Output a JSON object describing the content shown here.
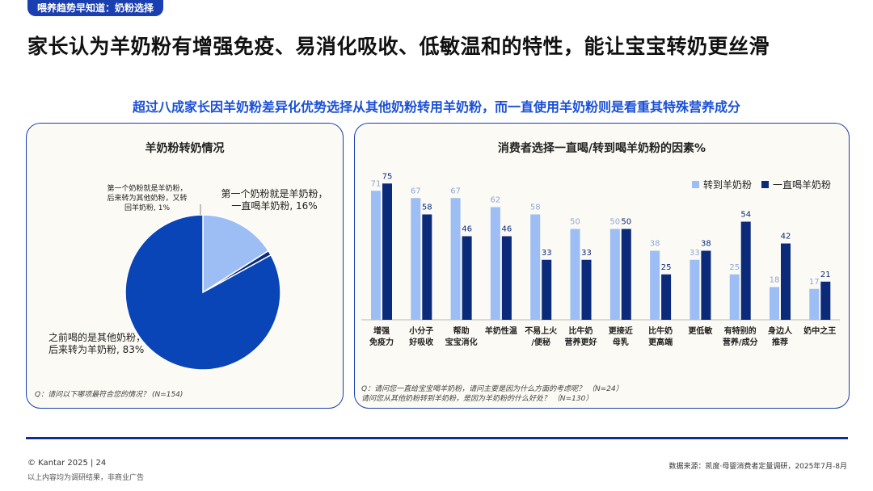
{
  "tag": "喂养趋势早知道：奶粉选择",
  "headline": "家长认为羊奶粉有增强免疫、易消化吸收、低敏温和的特性，能让宝宝转奶更丝滑",
  "subline": "超过八成家长因羊奶粉差异化优势选择从其他奶粉转用羊奶粉，而一直使用羊奶粉则是看重其特殊营养成分",
  "left_panel": {
    "title": "羊奶粉转奶情况",
    "labels": {
      "always": [
        "第一个奶粉就是羊奶粉，",
        "一直喝羊奶粉, 16%"
      ],
      "back": [
        "第一个奶粉就是羊奶粉，",
        "后来转为其他奶粉，又转",
        "回羊奶粉, 1%"
      ],
      "switched": [
        "之前喝的是其他奶粉，",
        "后来转为羊奶粉, 83%"
      ]
    },
    "note": "Q：请问以下哪项最符合您的情况？  (N=154)"
  },
  "right_panel": {
    "title": "消费者选择一直喝/转到喝羊奶粉的因素%",
    "note_lines": [
      "Q：请问您一直给宝宝喝羊奶粉，请问主要是因为什么方面的考虑呢？ （N=24）",
      "请问您从其他奶粉转到羊奶粉，是因为羊奶粉的什么好处？ （N=130）"
    ]
  },
  "chart_data": [
    {
      "type": "pie",
      "title": "羊奶粉转奶情况",
      "slices": [
        {
          "label": "第一个奶粉就是羊奶粉，一直喝羊奶粉",
          "value": 16,
          "color": "#9dbdf5"
        },
        {
          "label": "第一个奶粉就是羊奶粉，后来转为其他奶粉，又转回羊奶粉",
          "value": 1,
          "color": "#0b2a7a"
        },
        {
          "label": "之前喝的是其他奶粉，后来转为羊奶粉",
          "value": 83,
          "color": "#0a45b8"
        }
      ]
    },
    {
      "type": "bar",
      "title": "消费者选择一直喝/转到喝羊奶粉的因素%",
      "categories": [
        [
          "增强",
          "免疫力"
        ],
        [
          "小分子",
          "好吸收"
        ],
        [
          "帮助",
          "宝宝消化"
        ],
        [
          "羊奶性温"
        ],
        [
          "不易上火",
          "/便秘"
        ],
        [
          "比牛奶",
          "营养更好"
        ],
        [
          "更接近",
          "母乳"
        ],
        [
          "比牛奶",
          "更高端"
        ],
        [
          "更低敏"
        ],
        [
          "有特别的",
          "营养/成分"
        ],
        [
          "身边人",
          "推荐"
        ],
        [
          "奶中之王"
        ]
      ],
      "series": [
        {
          "name": "转到羊奶粉",
          "color": "#9dbdf5",
          "values": [
            71,
            67,
            67,
            62,
            58,
            50,
            50,
            38,
            33,
            25,
            18,
            17
          ]
        },
        {
          "name": "一直喝羊奶粉",
          "color": "#0b2a7a",
          "values": [
            75,
            58,
            46,
            46,
            33,
            33,
            50,
            25,
            38,
            54,
            42,
            21
          ]
        }
      ],
      "ylim": [
        0,
        80
      ],
      "legend": "top-right"
    }
  ],
  "footer": {
    "copyright": "© Kantar 2025 | 24",
    "disclaimer": "以上内容均为调研结果，非商业广告",
    "source": "数据来源：凯度·母婴消费者定量调研，2025年7月-8月"
  }
}
